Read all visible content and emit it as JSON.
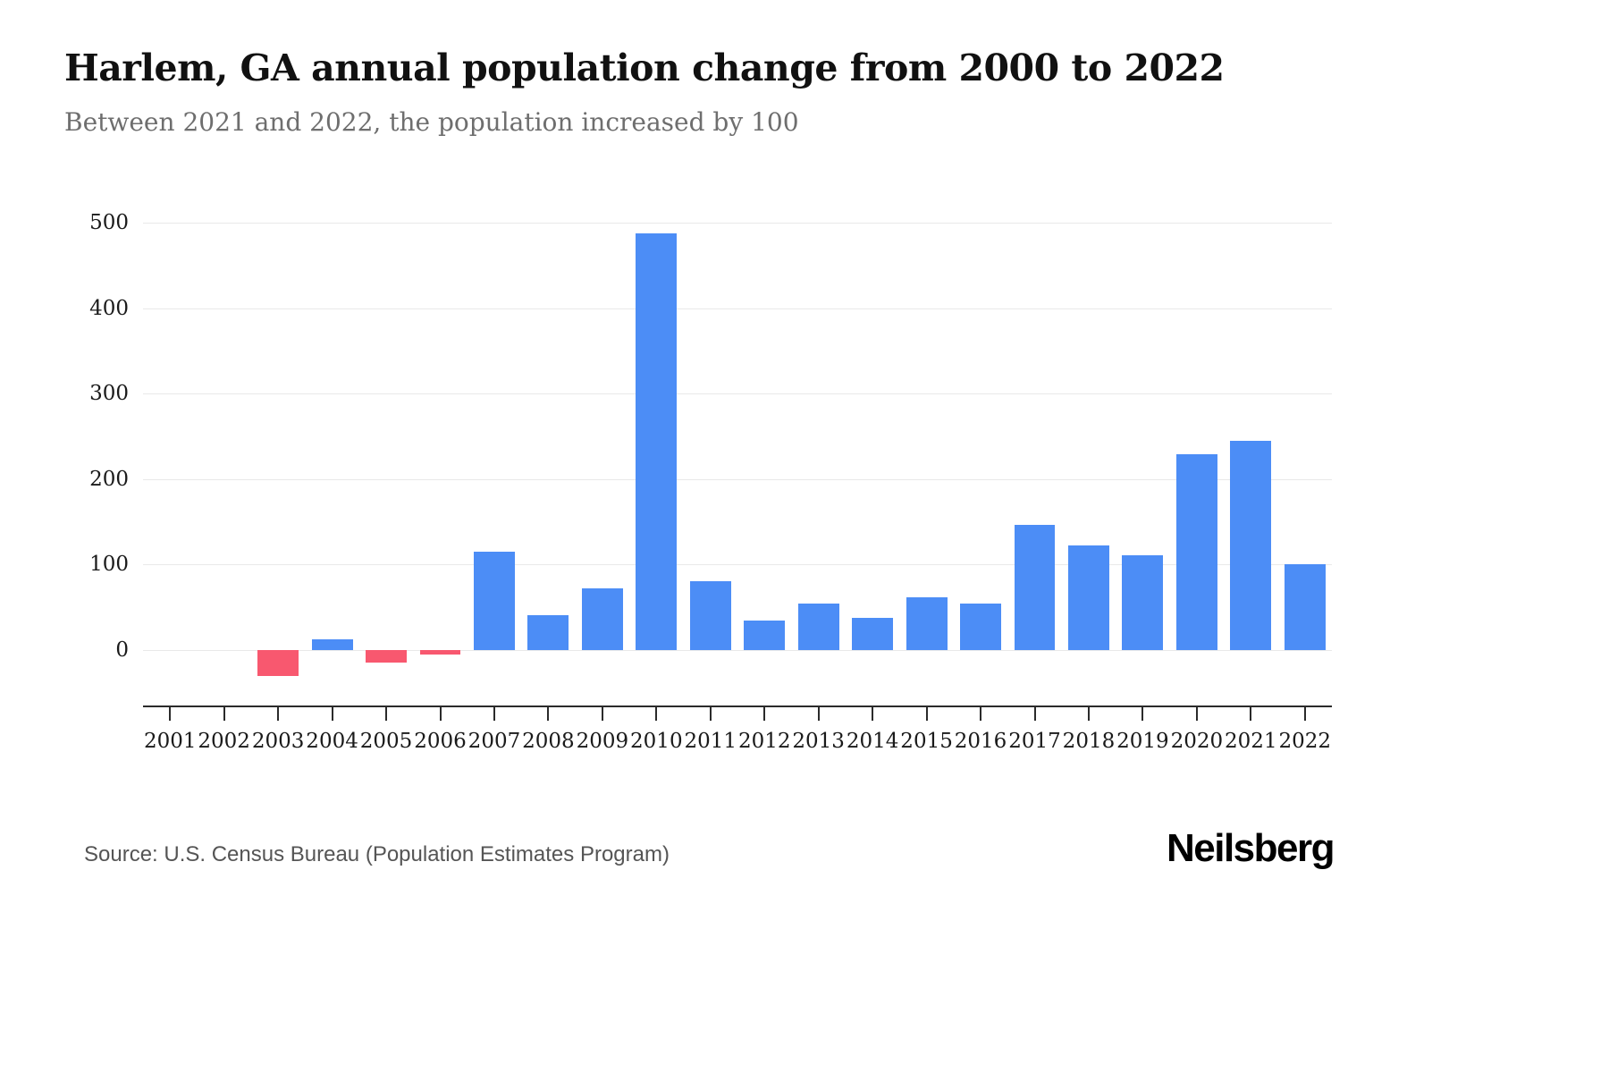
{
  "header": {
    "title": "Harlem, GA annual population change from 2000 to 2022",
    "subtitle": "Between 2021 and 2022, the population increased by 100"
  },
  "footer": {
    "source": "Source: U.S. Census Bureau (Population Estimates Program)",
    "logo": "Neilsberg"
  },
  "chart_data": {
    "type": "bar",
    "title": "Harlem, GA annual population change from 2000 to 2022",
    "subtitle": "Between 2021 and 2022, the population increased by 100",
    "categories": [
      "2001",
      "2002",
      "2003",
      "2004",
      "2005",
      "2006",
      "2007",
      "2008",
      "2009",
      "2010",
      "2011",
      "2012",
      "2013",
      "2014",
      "2015",
      "2016",
      "2017",
      "2018",
      "2019",
      "2020",
      "2021",
      "2022"
    ],
    "values": [
      0,
      0,
      -30,
      12,
      -15,
      -5,
      115,
      41,
      72,
      488,
      80,
      34,
      54,
      38,
      62,
      54,
      146,
      122,
      111,
      229,
      245,
      100
    ],
    "xlabel": "",
    "ylabel": "",
    "yticks": [
      0,
      100,
      200,
      300,
      400,
      500
    ],
    "ylim": [
      -66,
      520
    ],
    "grid": true,
    "legend": false,
    "positive_color": "#4C8DF6",
    "negative_color": "#F8586F"
  }
}
